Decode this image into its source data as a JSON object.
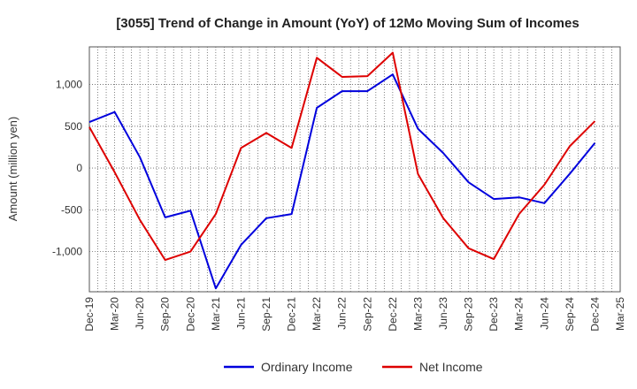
{
  "chart_data": {
    "type": "line",
    "title": "[3055]  Trend of Change in Amount (YoY) of 12Mo Moving Sum of Incomes",
    "xlabel": "",
    "ylabel": "Amount (million yen)",
    "ylim": [
      -1480,
      1450
    ],
    "yticks": [
      -1000,
      -500,
      0,
      500,
      1000
    ],
    "ytick_labels": [
      "-1,000",
      "-500",
      "0",
      "500",
      "1,000"
    ],
    "categories": [
      "Dec-19",
      "Mar-20",
      "Jun-20",
      "Sep-20",
      "Dec-20",
      "Mar-21",
      "Jun-21",
      "Sep-21",
      "Dec-21",
      "Mar-22",
      "Jun-22",
      "Sep-22",
      "Dec-22",
      "Mar-23",
      "Jun-23",
      "Sep-23",
      "Dec-23",
      "Mar-24",
      "Jun-24",
      "Sep-24",
      "Dec-24",
      "Mar-25"
    ],
    "grid": true,
    "legend_position": "bottom",
    "series": [
      {
        "name": "Ordinary Income",
        "color": "#0000dd",
        "values": [
          550,
          670,
          130,
          -590,
          -510,
          -1440,
          -920,
          -600,
          -550,
          720,
          920,
          920,
          1120,
          470,
          180,
          -170,
          -370,
          -350,
          -420,
          -70,
          300,
          null
        ]
      },
      {
        "name": "Net Income",
        "color": "#dd0000",
        "values": [
          490,
          -50,
          -620,
          -1100,
          -1000,
          -550,
          240,
          420,
          240,
          1320,
          1090,
          1100,
          1380,
          -70,
          -600,
          -960,
          -1090,
          -550,
          -200,
          260,
          560,
          null
        ]
      }
    ]
  }
}
